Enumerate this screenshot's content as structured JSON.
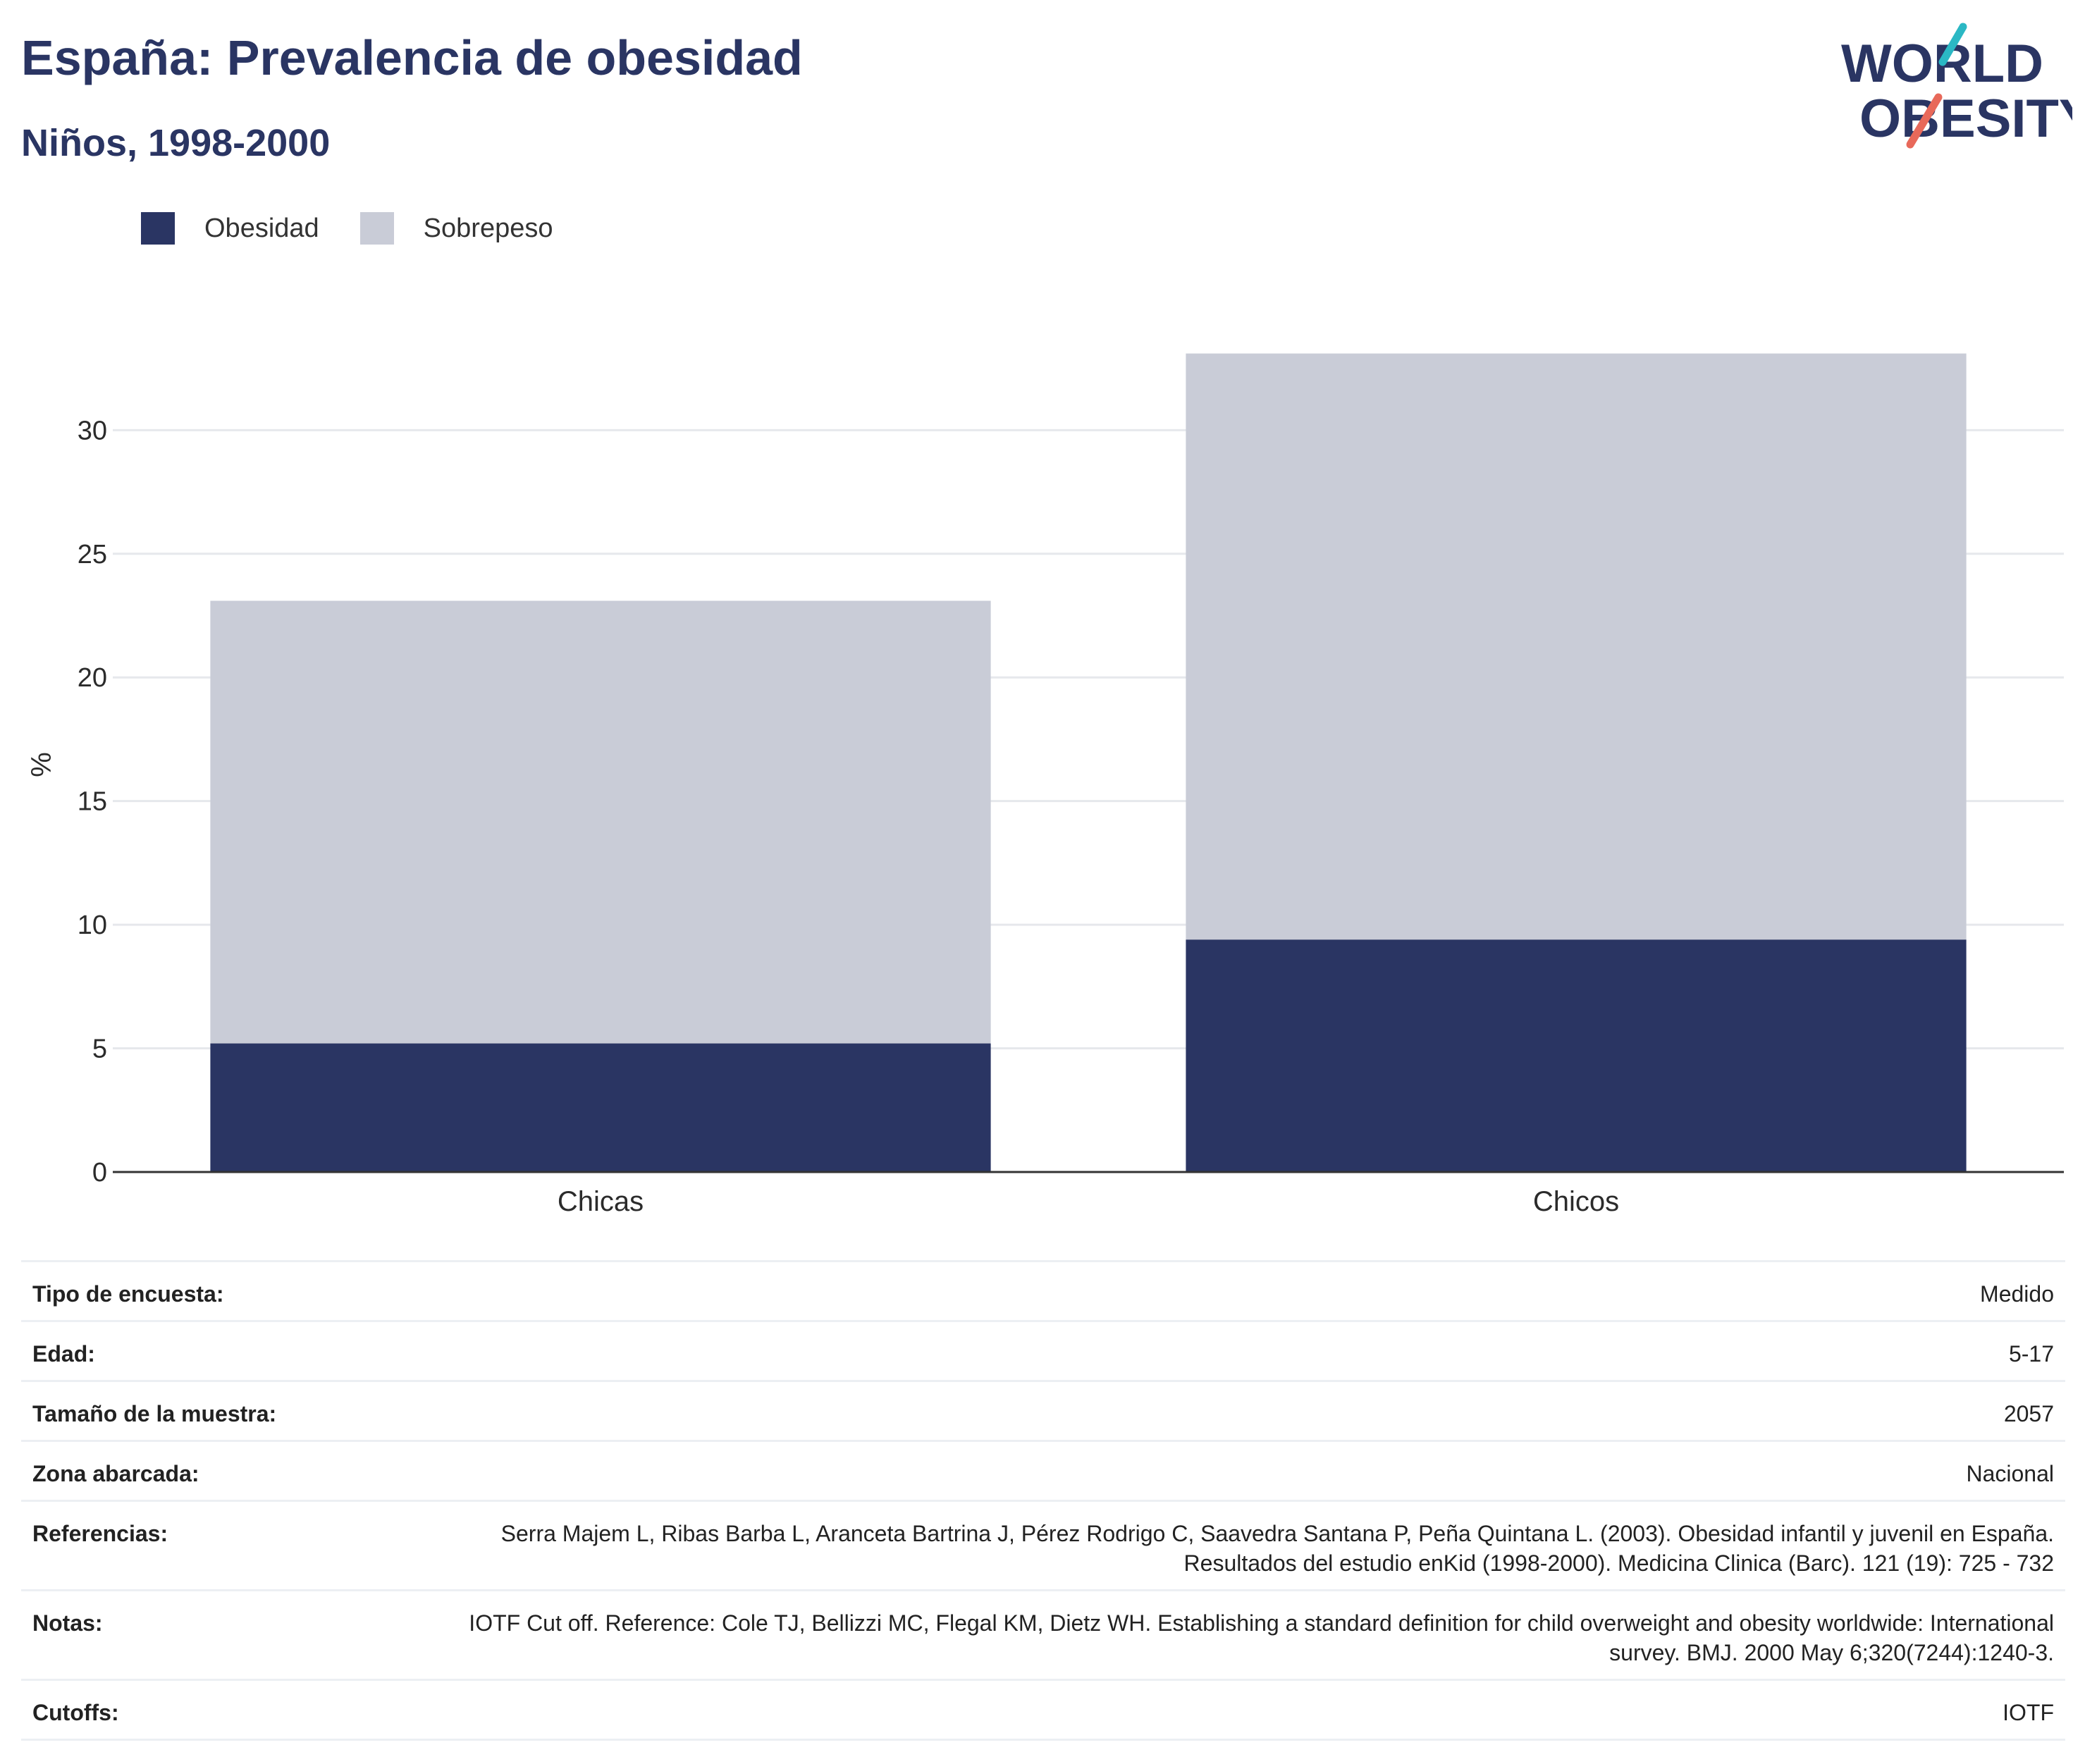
{
  "header": {
    "title": "España: Prevalencia de obesidad",
    "subtitle": "Niños, 1998-2000"
  },
  "logo": {
    "line1": "WORLD",
    "line2": "OBESITY",
    "colors": {
      "text": "#2a3563",
      "teal": "#2bb8c4",
      "coral": "#e8695a"
    }
  },
  "legend": [
    {
      "label": "Obesidad",
      "color": "#2a3563"
    },
    {
      "label": "Sobrepeso",
      "color": "#c9ccd7"
    }
  ],
  "chart_data": {
    "type": "bar",
    "stacked": true,
    "categories": [
      "Chicas",
      "Chicos"
    ],
    "series": [
      {
        "name": "Obesidad",
        "color": "#2a3563",
        "values": [
          5.2,
          9.4
        ]
      },
      {
        "name": "Sobrepeso",
        "color": "#c9ccd7",
        "values": [
          17.9,
          23.7
        ]
      }
    ],
    "totals": [
      23.1,
      33.1
    ],
    "ylabel": "%",
    "xlabel": "",
    "ylim": [
      0,
      34
    ],
    "yticks": [
      0,
      5,
      10,
      15,
      20,
      25,
      30
    ],
    "grid": true,
    "legend_position": "top-left"
  },
  "info": [
    {
      "key": "Tipo de encuesta:",
      "value": "Medido"
    },
    {
      "key": "Edad:",
      "value": "5-17"
    },
    {
      "key": "Tamaño de la muestra:",
      "value": "2057"
    },
    {
      "key": "Zona abarcada:",
      "value": "Nacional"
    },
    {
      "key": "Referencias:",
      "value": "Serra Majem L, Ribas Barba L, Aranceta Bartrina J, Pérez Rodrigo C, Saavedra Santana P, Peña Quintana L. (2003). Obesidad infantil y juvenil en España. Resultados del estudio enKid (1998-2000). Medicina Clinica (Barc). 121 (19): 725 - 732"
    },
    {
      "key": "Notas:",
      "value": "IOTF Cut off. Reference: Cole TJ, Bellizzi MC, Flegal KM, Dietz WH. Establishing a standard definition for child overweight and obesity worldwide: International survey. BMJ. 2000 May 6;320(7244):1240-3."
    },
    {
      "key": "Cutoffs:",
      "value": "IOTF"
    }
  ]
}
